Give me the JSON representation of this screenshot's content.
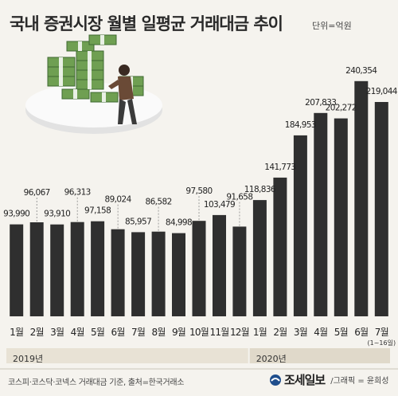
{
  "header": {
    "title": "국내 증권시장 월별 일평균 거래대금 추이",
    "unit": "단위=억원"
  },
  "chart_data": {
    "type": "bar",
    "title": "국내 증권시장 월별 일평균 거래대금 추이",
    "ylabel": "",
    "xlabel": "",
    "unit": "단위=억원",
    "ylim": [
      0,
      250000
    ],
    "grid": false,
    "categories": [
      "1월",
      "2월",
      "3월",
      "4월",
      "5월",
      "6월",
      "7월",
      "8월",
      "9월",
      "10월",
      "11월",
      "12월",
      "1월",
      "2월",
      "3월",
      "4월",
      "5월",
      "6월",
      "7월"
    ],
    "category_notes": [
      "",
      "",
      "",
      "",
      "",
      "",
      "",
      "",
      "",
      "",
      "",
      "",
      "",
      "",
      "",
      "",
      "",
      "",
      "(1~16일)"
    ],
    "values": [
      93990,
      96067,
      93910,
      96313,
      97158,
      89024,
      85957,
      86582,
      84998,
      97580,
      103479,
      91658,
      118836,
      141773,
      184953,
      207833,
      202272,
      240354,
      219044
    ],
    "value_labels": [
      "93,990",
      "96,067",
      "93,910",
      "96,313",
      "97,158",
      "89,024",
      "85,957",
      "86,582",
      "84,998",
      "97,580",
      "103,479",
      "91,658",
      "118,836",
      "141,773",
      "184,953",
      "207,833",
      "202,272",
      "240,354",
      "219,044"
    ],
    "year_groups": [
      {
        "label": "2019년",
        "start": 0,
        "end": 11
      },
      {
        "label": "2020년",
        "start": 12,
        "end": 18
      }
    ],
    "bar_color": "#2f2f2f"
  },
  "footer": {
    "source": "코스피·코스닥·코넥스 거래대금 기준, 출처=한국거래소",
    "brand": "조세일보",
    "credit": "/그래픽 = 윤희성"
  }
}
